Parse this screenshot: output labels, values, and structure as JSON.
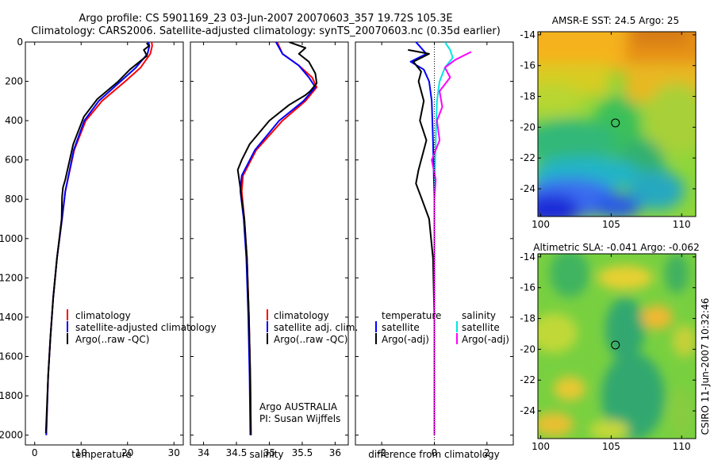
{
  "title_line1": "Argo profile: CS 5901169_23 03-Jun-2007 20070603_357 19.72S 105.3E",
  "title_line2": "Climatology: CARS2006. Satellite-adjusted climatology: synTS_20070603.nc (0.35d earlier)",
  "credit": "CSIRO 11-Jun-2007 10:32:46",
  "colors": {
    "red": "#ff0000",
    "blue": "#0000ff",
    "black": "#000000",
    "cyan": "#00e5e5",
    "magenta": "#ff00ff"
  },
  "chart_data": [
    {
      "type": "line",
      "id": "temperature",
      "xlabel": "temperature",
      "ylabel": "",
      "xlim": [
        -2,
        32
      ],
      "ylim": [
        2050,
        0
      ],
      "x_ticks": [
        0,
        10,
        20,
        30
      ],
      "y_ticks": [
        0,
        200,
        400,
        600,
        800,
        1000,
        1200,
        1400,
        1600,
        1800,
        2000
      ],
      "legend": [
        "climatology",
        "satellite-adjusted climatology",
        "Argo(..raw -QC)"
      ],
      "legend_placement": "lower-left",
      "series": [
        {
          "name": "climatology",
          "color": "red",
          "points": [
            [
              25.2,
              0
            ],
            [
              25.3,
              20
            ],
            [
              24.9,
              60
            ],
            [
              22.8,
              130
            ],
            [
              19.5,
              200
            ],
            [
              14.5,
              300
            ],
            [
              11,
              400
            ],
            [
              8.5,
              550
            ],
            [
              6.6,
              760
            ],
            [
              5.9,
              900
            ],
            [
              4.8,
              1100
            ],
            [
              4,
              1300
            ],
            [
              3.4,
              1500
            ],
            [
              2.9,
              1700
            ],
            [
              2.5,
              2000
            ]
          ]
        },
        {
          "name": "satellite-adjusted climatology",
          "color": "blue",
          "points": [
            [
              24.5,
              0
            ],
            [
              24.7,
              20
            ],
            [
              24.3,
              60
            ],
            [
              21.8,
              130
            ],
            [
              18.5,
              200
            ],
            [
              13.8,
              300
            ],
            [
              10.7,
              400
            ],
            [
              8.4,
              550
            ],
            [
              6.6,
              760
            ],
            [
              5.9,
              900
            ],
            [
              4.8,
              1100
            ],
            [
              4,
              1300
            ],
            [
              3.4,
              1500
            ],
            [
              2.9,
              1700
            ],
            [
              2.5,
              2000
            ]
          ]
        },
        {
          "name": "Argo(..raw -QC)",
          "color": "black",
          "points": [
            [
              24.1,
              5
            ],
            [
              24.6,
              20
            ],
            [
              23.5,
              40
            ],
            [
              24.2,
              70
            ],
            [
              20.5,
              140
            ],
            [
              18,
              200
            ],
            [
              13.5,
              290
            ],
            [
              10.6,
              380
            ],
            [
              8.3,
              520
            ],
            [
              6.6,
              700
            ],
            [
              6.1,
              740
            ],
            [
              5.9,
              790
            ],
            [
              5.8,
              900
            ],
            [
              4.8,
              1100
            ],
            [
              4,
              1300
            ],
            [
              3.4,
              1500
            ],
            [
              2.9,
              1700
            ],
            [
              2.4,
              1990
            ]
          ]
        }
      ]
    },
    {
      "type": "line",
      "id": "salinity",
      "xlabel": "salinity",
      "xlim": [
        33.8,
        36.2
      ],
      "ylim": [
        2050,
        0
      ],
      "x_ticks": [
        34,
        34.5,
        35,
        35.5,
        36
      ],
      "y_ticks": [
        0,
        200,
        400,
        600,
        800,
        1000,
        1200,
        1400,
        1600,
        1800,
        2000
      ],
      "legend": [
        "climatology",
        "satellite adj. clim.",
        "Argo(..raw -QC)"
      ],
      "legend_placement": "lower-left",
      "annotations": [
        "Argo AUSTRALIA",
        "PI: Susan Wijffels"
      ],
      "series": [
        {
          "name": "climatology",
          "color": "red",
          "points": [
            [
              35.12,
              0
            ],
            [
              35.2,
              60
            ],
            [
              35.45,
              120
            ],
            [
              35.65,
              180
            ],
            [
              35.72,
              230
            ],
            [
              35.55,
              300
            ],
            [
              35.2,
              400
            ],
            [
              34.8,
              550
            ],
            [
              34.6,
              680
            ],
            [
              34.58,
              760
            ],
            [
              34.62,
              900
            ],
            [
              34.66,
              1100
            ],
            [
              34.69,
              1400
            ],
            [
              34.71,
              1700
            ],
            [
              34.72,
              2000
            ]
          ]
        },
        {
          "name": "satellite adj. clim.",
          "color": "blue",
          "points": [
            [
              35.1,
              0
            ],
            [
              35.2,
              60
            ],
            [
              35.45,
              120
            ],
            [
              35.6,
              180
            ],
            [
              35.7,
              230
            ],
            [
              35.52,
              300
            ],
            [
              35.15,
              400
            ],
            [
              34.78,
              550
            ],
            [
              34.58,
              680
            ],
            [
              34.56,
              760
            ],
            [
              34.61,
              900
            ],
            [
              34.65,
              1100
            ],
            [
              34.68,
              1400
            ],
            [
              34.7,
              1700
            ],
            [
              34.71,
              2000
            ]
          ]
        },
        {
          "name": "Argo(..raw -QC)",
          "color": "black",
          "points": [
            [
              35.3,
              0
            ],
            [
              35.55,
              30
            ],
            [
              35.45,
              60
            ],
            [
              35.6,
              100
            ],
            [
              35.7,
              160
            ],
            [
              35.72,
              210
            ],
            [
              35.62,
              250
            ],
            [
              35.55,
              270
            ],
            [
              35.3,
              320
            ],
            [
              35.0,
              400
            ],
            [
              34.7,
              520
            ],
            [
              34.58,
              600
            ],
            [
              34.52,
              650
            ],
            [
              34.55,
              720
            ],
            [
              34.58,
              800
            ],
            [
              34.62,
              900
            ],
            [
              34.66,
              1100
            ],
            [
              34.69,
              1400
            ],
            [
              34.71,
              1700
            ],
            [
              34.72,
              2000
            ]
          ]
        }
      ]
    },
    {
      "type": "line",
      "id": "difference",
      "xlabel": "difference from climatology",
      "xlim": [
        -3,
        3
      ],
      "ylim": [
        2050,
        0
      ],
      "x_ticks": [
        -2,
        0,
        2
      ],
      "y_ticks": [
        0,
        200,
        400,
        600,
        800,
        1000,
        1200,
        1400,
        1600,
        1800,
        2000
      ],
      "legend_left": [
        "temperature",
        "satellite",
        "Argo(-adj)"
      ],
      "legend_right": [
        "salinity",
        "satellite",
        "Argo(-adj)"
      ],
      "legend_placement": "lower",
      "series": [
        {
          "name": "temperature satellite",
          "color": "blue",
          "points": [
            [
              -0.7,
              0
            ],
            [
              -0.5,
              30
            ],
            [
              -0.3,
              60
            ],
            [
              -0.9,
              100
            ],
            [
              -0.4,
              140
            ],
            [
              -0.2,
              200
            ],
            [
              -0.1,
              300
            ],
            [
              -0.05,
              500
            ],
            [
              0,
              800
            ],
            [
              0,
              1200
            ],
            [
              0,
              2000
            ]
          ]
        },
        {
          "name": "temperature Argo(-adj)",
          "color": "black",
          "points": [
            [
              -1,
              40
            ],
            [
              -0.2,
              60
            ],
            [
              -0.8,
              100
            ],
            [
              -0.5,
              150
            ],
            [
              -0.6,
              200
            ],
            [
              -0.4,
              300
            ],
            [
              -0.55,
              400
            ],
            [
              -0.3,
              500
            ],
            [
              -0.6,
              650
            ],
            [
              -0.7,
              720
            ],
            [
              -0.5,
              790
            ],
            [
              -0.2,
              900
            ],
            [
              -0.05,
              1100
            ],
            [
              0,
              1400
            ],
            [
              0,
              2000
            ]
          ]
        },
        {
          "name": "salinity satellite",
          "color": "cyan",
          "points": [
            [
              0.4,
              0
            ],
            [
              0.6,
              40
            ],
            [
              0.7,
              80
            ],
            [
              0.4,
              130
            ],
            [
              0.2,
              200
            ],
            [
              0.1,
              300
            ],
            [
              0.05,
              500
            ],
            [
              0,
              800
            ],
            [
              0,
              1200
            ],
            [
              0,
              2000
            ]
          ]
        },
        {
          "name": "salinity Argo(-adj)",
          "color": "magenta",
          "points": [
            [
              1.4,
              50
            ],
            [
              0.8,
              90
            ],
            [
              0.4,
              130
            ],
            [
              0.6,
              180
            ],
            [
              0.2,
              250
            ],
            [
              0.3,
              330
            ],
            [
              0.1,
              400
            ],
            [
              0.2,
              500
            ],
            [
              -0.1,
              600
            ],
            [
              0.05,
              700
            ],
            [
              0,
              800
            ],
            [
              0,
              1200
            ],
            [
              0,
              2000
            ]
          ]
        }
      ]
    },
    {
      "type": "heatmap",
      "id": "sst_map",
      "title": "AMSR-E SST: 24.5 Argo: 25",
      "xlim": [
        99.8,
        111
      ],
      "ylim": [
        -25.8,
        -13.8
      ],
      "x_ticks": [
        100,
        105,
        110
      ],
      "y_ticks": [
        -14,
        -16,
        -18,
        -20,
        -22,
        -24
      ],
      "marker": [
        105.3,
        -19.72
      ]
    },
    {
      "type": "heatmap",
      "id": "sla_map",
      "title": "Altimetric SLA: -0.041 Argo: -0.062",
      "xlim": [
        99.8,
        111
      ],
      "ylim": [
        -25.8,
        -13.8
      ],
      "x_ticks": [
        100,
        105,
        110
      ],
      "y_ticks": [
        -14,
        -16,
        -18,
        -20,
        -22,
        -24
      ],
      "marker": [
        105.3,
        -19.72
      ]
    }
  ]
}
